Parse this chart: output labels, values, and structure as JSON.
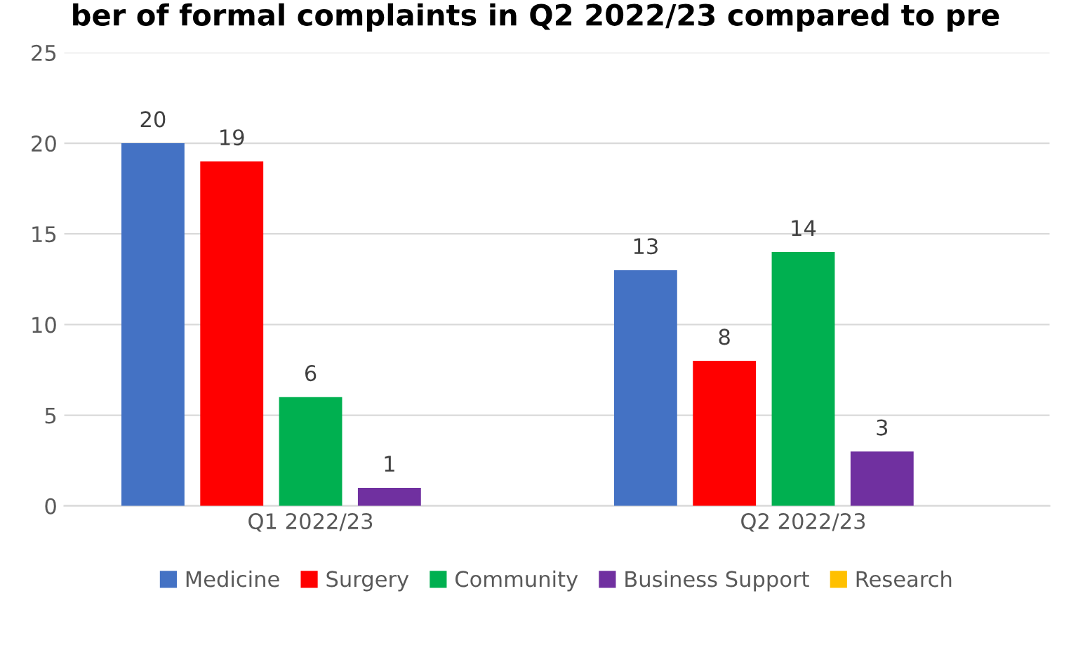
{
  "chart_data": {
    "type": "bar",
    "title": "ber of formal complaints in Q2 2022/23 compared to pre",
    "categories": [
      "Q1 2022/23",
      "Q2 2022/23"
    ],
    "series": [
      {
        "name": "Medicine",
        "color": "#4472c4",
        "values": [
          20,
          13
        ]
      },
      {
        "name": "Surgery",
        "color": "#ff0000",
        "values": [
          19,
          8
        ]
      },
      {
        "name": "Community",
        "color": "#00b050",
        "values": [
          6,
          14
        ]
      },
      {
        "name": "Business Support",
        "color": "#7030a0",
        "values": [
          1,
          3
        ]
      },
      {
        "name": "Research",
        "color": "#ffc000",
        "values": [
          null,
          null
        ]
      }
    ],
    "ylim": [
      0,
      25
    ],
    "yticks": [
      0,
      5,
      10,
      15,
      20,
      25
    ],
    "grid": "y",
    "legend": "bottom",
    "data_labels": true
  }
}
